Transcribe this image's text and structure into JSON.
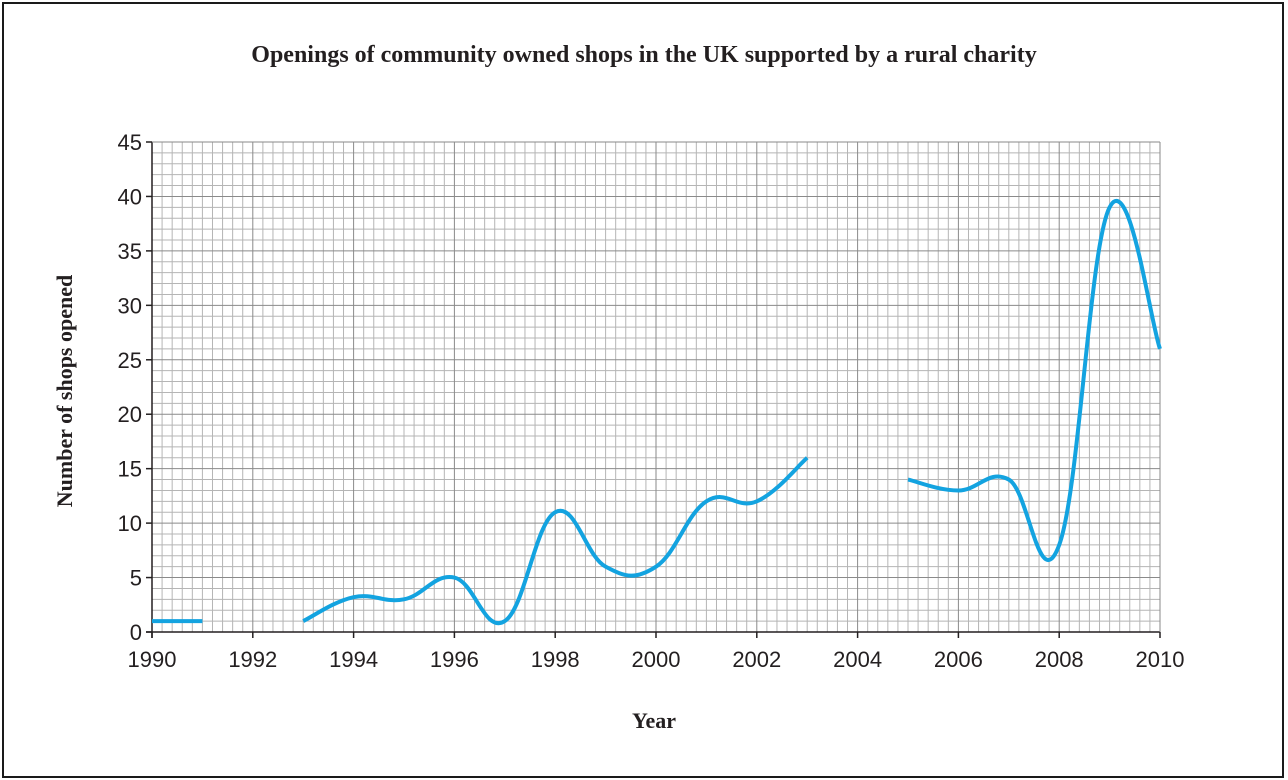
{
  "chart_data": {
    "type": "line",
    "title": "Openings of community owned shops in the UK supported by a rural charity",
    "xlabel": "Year",
    "ylabel": "Number of shops opened",
    "xlim": [
      1990,
      2010
    ],
    "ylim": [
      0,
      45
    ],
    "x_ticks": [
      "1990",
      "1992",
      "1994",
      "1996",
      "1998",
      "2000",
      "2002",
      "2004",
      "2006",
      "2008",
      "2010"
    ],
    "y_ticks": [
      "0",
      "5",
      "10",
      "15",
      "20",
      "25",
      "30",
      "35",
      "40",
      "45"
    ],
    "grid": true,
    "line_color": "#13a3e0",
    "segments": [
      {
        "x": [
          1990,
          1991
        ],
        "y": [
          1,
          1
        ]
      },
      {
        "x": [
          1993,
          1994,
          1995,
          1996,
          1997,
          1998,
          1999,
          2000,
          2001,
          2002,
          2003
        ],
        "y": [
          1,
          3.2,
          3,
          5,
          1,
          11,
          6,
          6,
          12,
          12,
          16
        ]
      },
      {
        "x": [
          2005,
          2006,
          2007,
          2008,
          2009,
          2010
        ],
        "y": [
          14,
          13,
          14,
          8,
          39,
          26
        ]
      }
    ]
  }
}
